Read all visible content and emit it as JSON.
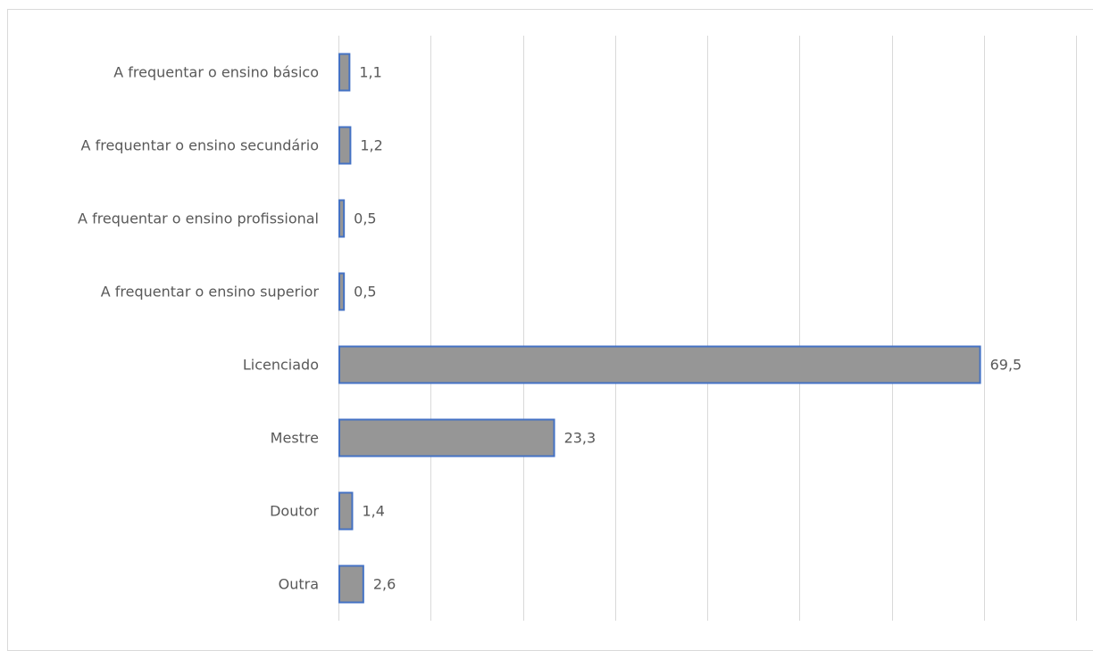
{
  "chart_data": {
    "type": "bar",
    "orientation": "horizontal",
    "categories": [
      "A frequentar o ensino básico",
      "A frequentar o ensino secundário",
      "A frequentar o ensino profissional",
      "A frequentar o ensino superior",
      "Licenciado",
      "Mestre",
      "Doutor",
      "Outra"
    ],
    "values": [
      1.1,
      1.2,
      0.5,
      0.5,
      69.5,
      23.3,
      1.4,
      2.6
    ],
    "data_labels": [
      "1,1",
      "1,2",
      "0,5",
      "0,5",
      "69,5",
      "23,3",
      "1,4",
      "2,6"
    ],
    "xlim": [
      0,
      80
    ],
    "grid": true,
    "legend": "none",
    "colors": {
      "bar_fill": "#969696",
      "bar_border": "#4472c4",
      "gridline": "#d9d9d9",
      "text": "#595959"
    }
  }
}
